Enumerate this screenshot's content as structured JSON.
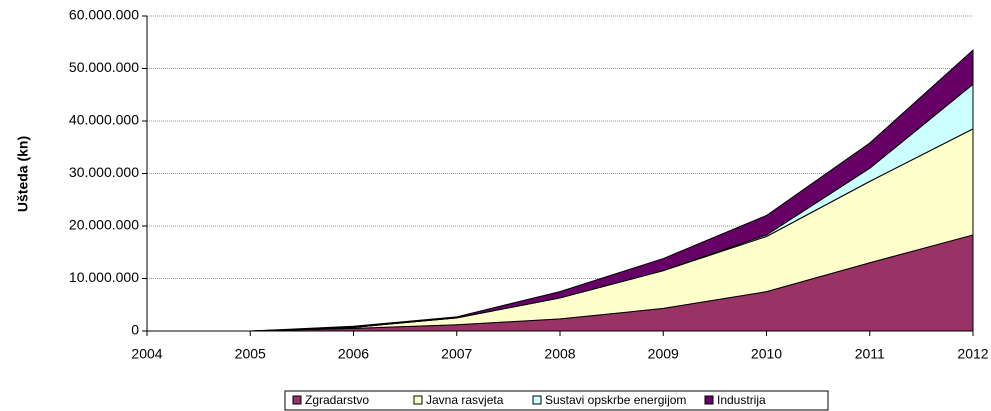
{
  "chart_data": {
    "type": "stacked_area",
    "y_label": "Ušteda (kn)",
    "x": [
      2004,
      2005,
      2006,
      2007,
      2008,
      2009,
      2010,
      2011,
      2012
    ],
    "xlim": [
      2004,
      2012
    ],
    "xticks": [
      2004,
      2005,
      2006,
      2007,
      2008,
      2009,
      2010,
      2011,
      2012
    ],
    "ylim": [
      0,
      60000000
    ],
    "yticks": [
      0,
      {
        "value": 10000000,
        "label": "10.000.000"
      },
      {
        "value": 20000000,
        "label": "20.000.000"
      },
      {
        "value": 30000000,
        "label": "30.000.000"
      },
      {
        "value": 40000000,
        "label": "40.000.000"
      },
      {
        "value": 50000000,
        "label": "50.000.000"
      },
      {
        "value": 60000000,
        "label": "60.000.000"
      }
    ],
    "grid": true,
    "legend": "bottom",
    "series": [
      {
        "name": "Zgradarstvo",
        "color": "#993366",
        "values": [
          0,
          0,
          500000,
          1200000,
          2300000,
          4300000,
          7500000,
          13000000,
          18300000
        ]
      },
      {
        "name": "Javna rasvjeta",
        "color": "#ffffcc",
        "values": [
          0,
          0,
          200000,
          1300000,
          4000000,
          7200000,
          10500000,
          15500000,
          20200000
        ]
      },
      {
        "name": "Sustavi opskrbe energijom",
        "color": "#ccffff",
        "values": [
          0,
          0,
          0,
          0,
          0,
          0,
          300000,
          2500000,
          8500000
        ]
      },
      {
        "name": "Industrija",
        "color": "#660066",
        "values": [
          0,
          0,
          200000,
          200000,
          1200000,
          2300000,
          3700000,
          4800000,
          6500000
        ]
      }
    ]
  }
}
